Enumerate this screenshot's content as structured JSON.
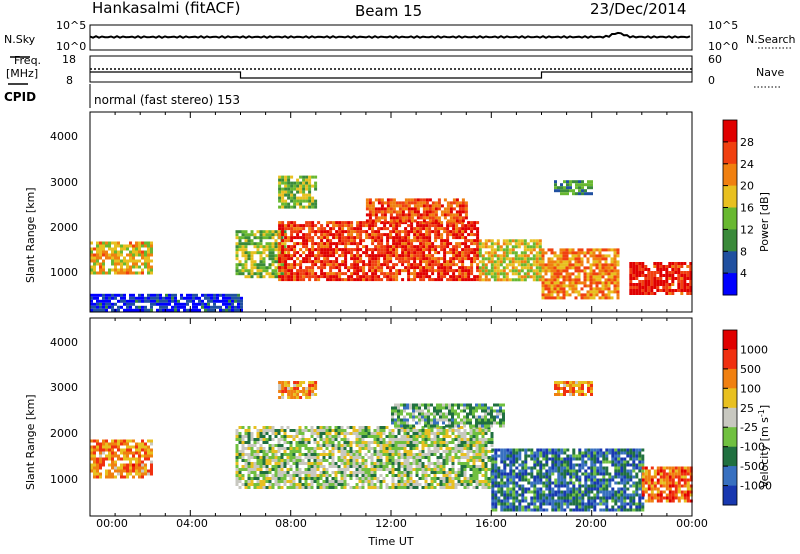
{
  "header": {
    "station": "Hankasalmi (fitACF)",
    "beam": "Beam 15",
    "date": "23/Dec/2014"
  },
  "noise_panel": {
    "left_label": "N.Sky",
    "right_label": "N.Search",
    "left_ticks": [
      "10^5",
      "10^0"
    ],
    "right_ticks": [
      "10^5",
      "10^0"
    ]
  },
  "freq_panel": {
    "left_label_1": "Freq.",
    "left_label_2": "[MHz]",
    "right_label": "Nave",
    "left_ticks": [
      "18",
      "8"
    ],
    "right_ticks": [
      "60",
      "0"
    ],
    "freq_level": 12.0,
    "nave_level": 12,
    "nave_low_segments": [
      [
        6.0,
        18.0
      ]
    ]
  },
  "cpid_panel": {
    "label": "CPID",
    "program": "normal (fast stereo) 153"
  },
  "axes": {
    "x_label": "Time UT",
    "x_ticks": [
      "00:00",
      "04:00",
      "08:00",
      "12:00",
      "16:00",
      "20:00",
      "00:00"
    ],
    "x_range": [
      0,
      24
    ],
    "y_label": "Slant Range [km]",
    "y_ticks": [
      "1000",
      "2000",
      "3000",
      "4000"
    ],
    "y_range": [
      200,
      4600
    ]
  },
  "chart_data": [
    {
      "type": "heatmap",
      "quantity": "power",
      "colorbar_label": "Power [dB]",
      "colorbar_ticks": [
        "4",
        "8",
        "12",
        "16",
        "20",
        "24",
        "28"
      ],
      "color_scale": [
        "#0000ff",
        "#2050a0",
        "#3a8a3a",
        "#68b830",
        "#e8c020",
        "#f08010",
        "#f04010",
        "#e00000"
      ],
      "blobs": [
        {
          "t": [
            0.0,
            2.5
          ],
          "r": [
            1050,
            1750
          ],
          "level": 0.6
        },
        {
          "t": [
            5.8,
            7.8
          ],
          "r": [
            1000,
            2000
          ],
          "level": 0.45
        },
        {
          "t": [
            7.5,
            15.5
          ],
          "r": [
            900,
            2200
          ],
          "level": 0.85
        },
        {
          "t": [
            11.0,
            15.0
          ],
          "r": [
            2200,
            2700
          ],
          "level": 0.8
        },
        {
          "t": [
            15.5,
            18.0
          ],
          "r": [
            900,
            1800
          ],
          "level": 0.55
        },
        {
          "t": [
            18.0,
            21.0
          ],
          "r": [
            500,
            1600
          ],
          "level": 0.7
        },
        {
          "t": [
            21.5,
            24.0
          ],
          "r": [
            600,
            1300
          ],
          "level": 0.9
        },
        {
          "t": [
            7.5,
            9.0
          ],
          "r": [
            2500,
            3200
          ],
          "level": 0.45
        },
        {
          "t": [
            18.5,
            20.0
          ],
          "r": [
            2800,
            3100
          ],
          "level": 0.35
        },
        {
          "t": [
            0.0,
            6.0
          ],
          "r": [
            220,
            600
          ],
          "level": 0.1
        }
      ]
    },
    {
      "type": "heatmap",
      "quantity": "velocity",
      "colorbar_label": "Velocity [m s-1]",
      "colorbar_ticks": [
        "1000",
        "500",
        "100",
        "25",
        "-25",
        "-100",
        "-500",
        "-1000"
      ],
      "color_scale": [
        "#1838b0",
        "#3870c0",
        "#207040",
        "#70c040",
        "#c8c8c0",
        "#e8c020",
        "#f08010",
        "#f03010",
        "#e00000"
      ],
      "blobs": [
        {
          "t": [
            0.0,
            2.5
          ],
          "r": [
            1050,
            1900
          ],
          "level": 0.72
        },
        {
          "t": [
            5.8,
            16.0
          ],
          "r": [
            800,
            2200
          ],
          "level": 0.45
        },
        {
          "t": [
            12.0,
            16.5
          ],
          "r": [
            2200,
            2700
          ],
          "level": 0.35
        },
        {
          "t": [
            16.0,
            22.0
          ],
          "r": [
            300,
            1700
          ],
          "level": 0.2
        },
        {
          "t": [
            22.0,
            24.0
          ],
          "r": [
            500,
            1300
          ],
          "level": 0.75
        },
        {
          "t": [
            7.5,
            9.0
          ],
          "r": [
            2800,
            3200
          ],
          "level": 0.7
        },
        {
          "t": [
            18.5,
            20.0
          ],
          "r": [
            2900,
            3200
          ],
          "level": 0.7
        }
      ]
    }
  ]
}
